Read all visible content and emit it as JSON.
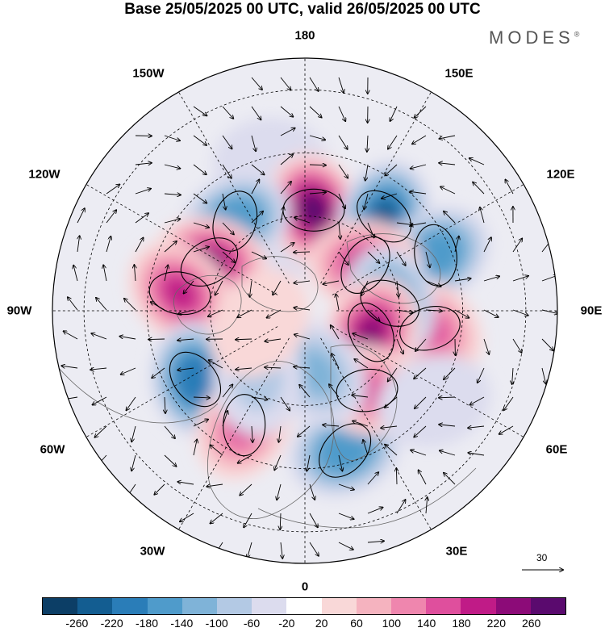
{
  "title": "Base 25/05/2025 00 UTC, valid 26/05/2025 00 UTC",
  "brand": "MODES",
  "brand_mark": "®",
  "longitude_labels": {
    "top": "180",
    "top_left": "150W",
    "top_right": "150E",
    "upper_left": "120W",
    "upper_right": "120E",
    "left": "90W",
    "right": "90E",
    "lower_left": "60W",
    "lower_right": "60E",
    "bottom_left": "30W",
    "bottom_right": "30E",
    "bottom": "0"
  },
  "vector_scale_label": "30",
  "colorbar": {
    "ticks": [
      "-260",
      "-220",
      "-180",
      "-140",
      "-100",
      "-60",
      "-20",
      "20",
      "60",
      "100",
      "140",
      "180",
      "220",
      "260"
    ],
    "colors": [
      "#0c3e66",
      "#135d91",
      "#2a7db8",
      "#4f9bcb",
      "#7fb3d8",
      "#b3c9e4",
      "#dcdcee",
      "#ffffff",
      "#f9d8d8",
      "#f5b3bf",
      "#ef86ae",
      "#df4f9d",
      "#c01b87",
      "#8c0b78",
      "#5a0a6e"
    ]
  },
  "anomaly_centers": [
    {
      "lon": -167,
      "colat": 48,
      "value": -60
    },
    {
      "lon": -170,
      "colat": 27,
      "value": -30
    },
    {
      "lon": 175,
      "colat": 32,
      "value": 260
    },
    {
      "lon": 140,
      "colat": 39,
      "value": -230
    },
    {
      "lon": 113,
      "colat": 45,
      "value": -180
    },
    {
      "lon": 127,
      "colat": 24,
      "value": 200
    },
    {
      "lon": 82,
      "colat": 40,
      "value": 140
    },
    {
      "lon": 95,
      "colat": 27,
      "value": -200
    },
    {
      "lon": 72,
      "colat": 22,
      "value": 220
    },
    {
      "lon": -142,
      "colat": 36,
      "value": -180
    },
    {
      "lon": -117,
      "colat": 34,
      "value": 220
    },
    {
      "lon": -98,
      "colat": 40,
      "value": 200
    },
    {
      "lon": -58,
      "colat": 41,
      "value": -220
    },
    {
      "lon": -28,
      "colat": 41,
      "value": 140
    },
    {
      "lon": 16,
      "colat": 46,
      "value": -180
    },
    {
      "lon": 38,
      "colat": 32,
      "value": 160
    },
    {
      "lon": 10,
      "colat": 20,
      "value": -120
    },
    {
      "lon": -35,
      "colat": 26,
      "value": -80
    },
    {
      "lon": -75,
      "colat": 15,
      "value": 40
    },
    {
      "lon": 55,
      "colat": 50,
      "value": -60
    }
  ]
}
